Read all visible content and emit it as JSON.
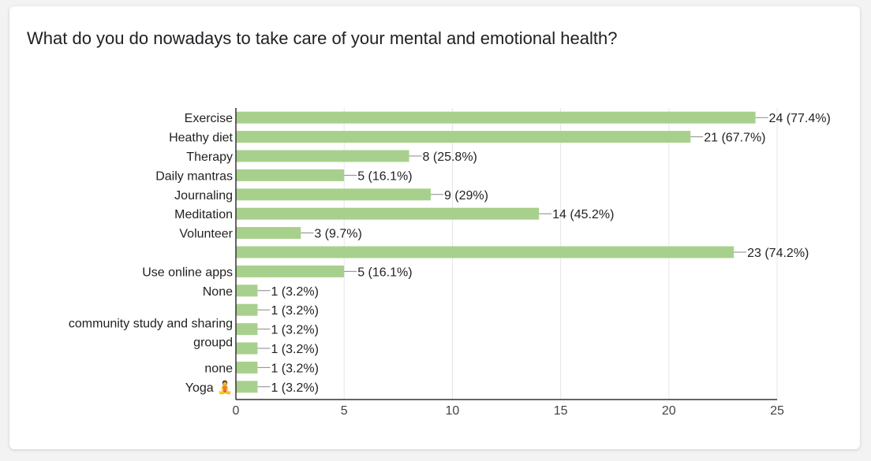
{
  "title": "What do you do nowadays to take care of your mental and emotional health?",
  "chart_data": {
    "type": "bar",
    "orientation": "horizontal",
    "title": "What do you do nowadays to take care of your mental and emotional health?",
    "categories": [
      "Exercise",
      "Heathy diet",
      "Therapy",
      "Daily mantras",
      "Journaling",
      "Meditation",
      "Volunteer",
      "",
      "Use online apps",
      "None",
      "",
      "community study and sharing groupd",
      "",
      "none",
      "Yoga 🧘"
    ],
    "category_label_lines": [
      [
        "Exercise"
      ],
      [
        "Heathy diet"
      ],
      [
        "Therapy"
      ],
      [
        "Daily mantras"
      ],
      [
        "Journaling"
      ],
      [
        "Meditation"
      ],
      [
        "Volunteer"
      ],
      [],
      [
        "Use online apps"
      ],
      [
        "None"
      ],
      [],
      [
        "community study and sharing",
        "groupd"
      ],
      [],
      [
        "none"
      ],
      [
        "Yoga 🧘"
      ]
    ],
    "values": [
      24,
      21,
      8,
      5,
      9,
      14,
      3,
      23,
      5,
      1,
      1,
      1,
      1,
      1,
      1
    ],
    "data_labels": [
      "24 (77.4%)",
      "21 (67.7%)",
      "8 (25.8%)",
      "5 (16.1%)",
      "9 (29%)",
      "14 (45.2%)",
      "3 (9.7%)",
      "23 (74.2%)",
      "5 (16.1%)",
      "1 (3.2%)",
      "1 (3.2%)",
      "1 (3.2%)",
      "1 (3.2%)",
      "1 (3.2%)",
      "1 (3.2%)"
    ],
    "xticks": [
      0,
      5,
      10,
      15,
      20,
      25
    ],
    "xlim": [
      0,
      25
    ],
    "grid": true,
    "colors": {
      "bar": "#a8d08d",
      "grid": "#e6e6e6",
      "axis": "#333333",
      "leader": "#888888"
    }
  }
}
